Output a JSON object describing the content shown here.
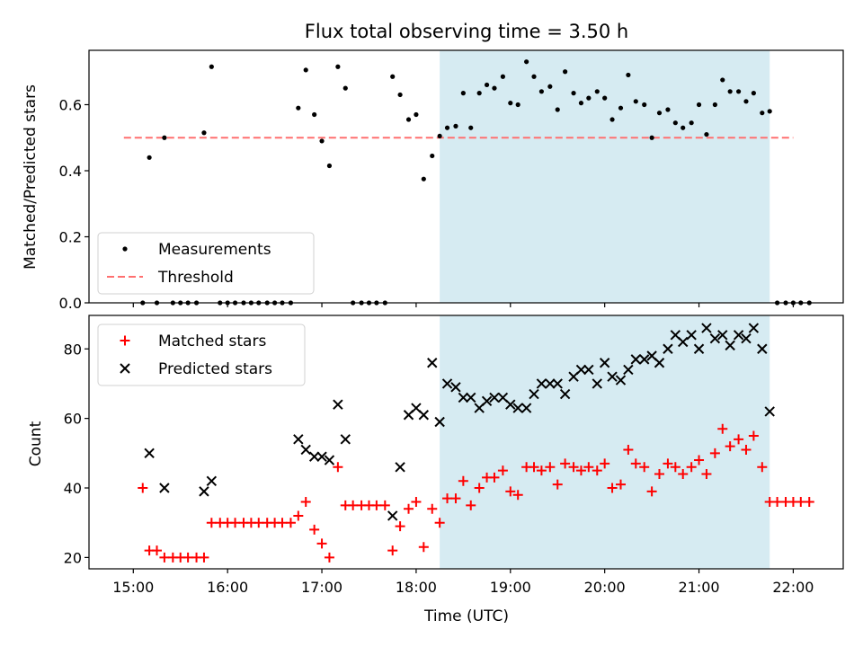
{
  "chart_data": [
    {
      "type": "scatter",
      "title": "Flux total observing time = 3.50 h",
      "xlabel": "",
      "ylabel": "Matched/Predicted stars",
      "xlim": [
        14.53,
        22.53
      ],
      "ylim": [
        0,
        0.7646
      ],
      "yticks": [
        0.0,
        0.2,
        0.4,
        0.6
      ],
      "ytick_labels": [
        "0.0",
        "0.2",
        "0.4",
        "0.6"
      ],
      "shaded_interval": [
        18.25,
        21.75
      ],
      "shade_color": "#add8e6",
      "legend_position": "lower-left",
      "threshold": {
        "name": "Threshold",
        "y": 0.5,
        "x_range": [
          14.9,
          22.0
        ],
        "color": "#ff7070",
        "style": "dashed"
      },
      "series": [
        {
          "name": "Measurements",
          "marker": "dot",
          "color": "#000000",
          "points": [
            [
              15.1,
              0.0
            ],
            [
              15.17,
              0.44
            ],
            [
              15.25,
              0.0
            ],
            [
              15.33,
              0.5
            ],
            [
              15.42,
              0.0
            ],
            [
              15.5,
              0.0
            ],
            [
              15.58,
              0.0
            ],
            [
              15.67,
              0.0
            ],
            [
              15.75,
              0.515
            ],
            [
              15.83,
              0.715
            ],
            [
              15.92,
              0.0
            ],
            [
              16.0,
              0.0
            ],
            [
              16.08,
              0.0
            ],
            [
              16.17,
              0.0
            ],
            [
              16.25,
              0.0
            ],
            [
              16.33,
              0.0
            ],
            [
              16.42,
              0.0
            ],
            [
              16.5,
              0.0
            ],
            [
              16.58,
              0.0
            ],
            [
              16.67,
              0.0
            ],
            [
              16.75,
              0.59
            ],
            [
              16.83,
              0.705
            ],
            [
              16.92,
              0.57
            ],
            [
              17.0,
              0.49
            ],
            [
              17.08,
              0.415
            ],
            [
              17.17,
              0.715
            ],
            [
              17.25,
              0.65
            ],
            [
              17.33,
              0.0
            ],
            [
              17.42,
              0.0
            ],
            [
              17.5,
              0.0
            ],
            [
              17.58,
              0.0
            ],
            [
              17.67,
              0.0
            ],
            [
              17.75,
              0.685
            ],
            [
              17.83,
              0.63
            ],
            [
              17.92,
              0.555
            ],
            [
              18.0,
              0.57
            ],
            [
              18.08,
              0.375
            ],
            [
              18.17,
              0.445
            ],
            [
              18.25,
              0.505
            ],
            [
              18.33,
              0.53
            ],
            [
              18.42,
              0.535
            ],
            [
              18.5,
              0.635
            ],
            [
              18.58,
              0.53
            ],
            [
              18.67,
              0.635
            ],
            [
              18.75,
              0.66
            ],
            [
              18.83,
              0.65
            ],
            [
              18.92,
              0.685
            ],
            [
              19.0,
              0.605
            ],
            [
              19.08,
              0.6
            ],
            [
              19.17,
              0.73
            ],
            [
              19.25,
              0.685
            ],
            [
              19.33,
              0.64
            ],
            [
              19.42,
              0.655
            ],
            [
              19.5,
              0.585
            ],
            [
              19.58,
              0.7
            ],
            [
              19.67,
              0.635
            ],
            [
              19.75,
              0.605
            ],
            [
              19.83,
              0.62
            ],
            [
              19.92,
              0.64
            ],
            [
              20.0,
              0.62
            ],
            [
              20.08,
              0.555
            ],
            [
              20.17,
              0.59
            ],
            [
              20.25,
              0.69
            ],
            [
              20.33,
              0.61
            ],
            [
              20.42,
              0.6
            ],
            [
              20.5,
              0.5
            ],
            [
              20.58,
              0.575
            ],
            [
              20.67,
              0.585
            ],
            [
              20.75,
              0.545
            ],
            [
              20.83,
              0.53
            ],
            [
              20.92,
              0.545
            ],
            [
              21.0,
              0.6
            ],
            [
              21.08,
              0.51
            ],
            [
              21.17,
              0.6
            ],
            [
              21.25,
              0.675
            ],
            [
              21.33,
              0.64
            ],
            [
              21.42,
              0.64
            ],
            [
              21.5,
              0.61
            ],
            [
              21.58,
              0.635
            ],
            [
              21.67,
              0.575
            ],
            [
              21.75,
              0.58
            ],
            [
              21.83,
              0.0
            ],
            [
              21.92,
              0.0
            ],
            [
              22.0,
              0.0
            ],
            [
              22.08,
              0.0
            ],
            [
              22.17,
              0.0
            ]
          ]
        }
      ]
    },
    {
      "type": "scatter",
      "title": "",
      "xlabel": "Time (UTC)",
      "ylabel": "Count",
      "xlim": [
        14.53,
        22.53
      ],
      "ylim": [
        16.74,
        89.63
      ],
      "xticks": [
        15,
        16,
        17,
        18,
        19,
        20,
        21,
        22
      ],
      "xtick_labels": [
        "15:00",
        "16:00",
        "17:00",
        "18:00",
        "19:00",
        "20:00",
        "21:00",
        "22:00"
      ],
      "yticks": [
        20,
        40,
        60,
        80
      ],
      "ytick_labels": [
        "20",
        "40",
        "60",
        "80"
      ],
      "shaded_interval": [
        18.25,
        21.75
      ],
      "shade_color": "#add8e6",
      "legend_position": "upper-left",
      "series": [
        {
          "name": "Matched stars",
          "marker": "plus",
          "color": "#ff0000",
          "points": [
            [
              15.1,
              40
            ],
            [
              15.17,
              22
            ],
            [
              15.25,
              22
            ],
            [
              15.33,
              20
            ],
            [
              15.42,
              20
            ],
            [
              15.5,
              20
            ],
            [
              15.58,
              20
            ],
            [
              15.67,
              20
            ],
            [
              15.75,
              20
            ],
            [
              15.83,
              30
            ],
            [
              15.92,
              30
            ],
            [
              16.0,
              30
            ],
            [
              16.08,
              30
            ],
            [
              16.17,
              30
            ],
            [
              16.25,
              30
            ],
            [
              16.33,
              30
            ],
            [
              16.42,
              30
            ],
            [
              16.5,
              30
            ],
            [
              16.58,
              30
            ],
            [
              16.67,
              30
            ],
            [
              16.75,
              32
            ],
            [
              16.83,
              36
            ],
            [
              16.92,
              28
            ],
            [
              17.0,
              24
            ],
            [
              17.08,
              20
            ],
            [
              17.17,
              46
            ],
            [
              17.25,
              35
            ],
            [
              17.33,
              35
            ],
            [
              17.42,
              35
            ],
            [
              17.5,
              35
            ],
            [
              17.58,
              35
            ],
            [
              17.67,
              35
            ],
            [
              17.75,
              22
            ],
            [
              17.83,
              29
            ],
            [
              17.92,
              34
            ],
            [
              18.0,
              36
            ],
            [
              18.08,
              23
            ],
            [
              18.17,
              34
            ],
            [
              18.25,
              30
            ],
            [
              18.33,
              37
            ],
            [
              18.42,
              37
            ],
            [
              18.5,
              42
            ],
            [
              18.58,
              35
            ],
            [
              18.67,
              40
            ],
            [
              18.75,
              43
            ],
            [
              18.83,
              43
            ],
            [
              18.92,
              45
            ],
            [
              19.0,
              39
            ],
            [
              19.08,
              38
            ],
            [
              19.17,
              46
            ],
            [
              19.25,
              46
            ],
            [
              19.33,
              45
            ],
            [
              19.42,
              46
            ],
            [
              19.5,
              41
            ],
            [
              19.58,
              47
            ],
            [
              19.67,
              46
            ],
            [
              19.75,
              45
            ],
            [
              19.83,
              46
            ],
            [
              19.92,
              45
            ],
            [
              20.0,
              47
            ],
            [
              20.08,
              40
            ],
            [
              20.17,
              41
            ],
            [
              20.25,
              51
            ],
            [
              20.33,
              47
            ],
            [
              20.42,
              46
            ],
            [
              20.5,
              39
            ],
            [
              20.58,
              44
            ],
            [
              20.67,
              47
            ],
            [
              20.75,
              46
            ],
            [
              20.83,
              44
            ],
            [
              20.92,
              46
            ],
            [
              21.0,
              48
            ],
            [
              21.08,
              44
            ],
            [
              21.17,
              50
            ],
            [
              21.25,
              57
            ],
            [
              21.33,
              52
            ],
            [
              21.42,
              54
            ],
            [
              21.5,
              51
            ],
            [
              21.58,
              55
            ],
            [
              21.67,
              46
            ],
            [
              21.75,
              36
            ],
            [
              21.83,
              36
            ],
            [
              21.92,
              36
            ],
            [
              22.0,
              36
            ],
            [
              22.08,
              36
            ],
            [
              22.17,
              36
            ]
          ]
        },
        {
          "name": "Predicted stars",
          "marker": "x",
          "color": "#000000",
          "points": [
            [
              15.17,
              50
            ],
            [
              15.33,
              40
            ],
            [
              15.75,
              39
            ],
            [
              15.83,
              42
            ],
            [
              16.75,
              54
            ],
            [
              16.83,
              51
            ],
            [
              16.92,
              49
            ],
            [
              17.0,
              49
            ],
            [
              17.08,
              48
            ],
            [
              17.17,
              64
            ],
            [
              17.25,
              54
            ],
            [
              17.75,
              32
            ],
            [
              17.83,
              46
            ],
            [
              17.92,
              61
            ],
            [
              18.0,
              63
            ],
            [
              18.08,
              61
            ],
            [
              18.17,
              76
            ],
            [
              18.25,
              59
            ],
            [
              18.33,
              70
            ],
            [
              18.42,
              69
            ],
            [
              18.5,
              66
            ],
            [
              18.58,
              66
            ],
            [
              18.67,
              63
            ],
            [
              18.75,
              65
            ],
            [
              18.83,
              66
            ],
            [
              18.92,
              66
            ],
            [
              19.0,
              64
            ],
            [
              19.08,
              63
            ],
            [
              19.17,
              63
            ],
            [
              19.25,
              67
            ],
            [
              19.33,
              70
            ],
            [
              19.42,
              70
            ],
            [
              19.5,
              70
            ],
            [
              19.58,
              67
            ],
            [
              19.67,
              72
            ],
            [
              19.75,
              74
            ],
            [
              19.83,
              74
            ],
            [
              19.92,
              70
            ],
            [
              20.0,
              76
            ],
            [
              20.08,
              72
            ],
            [
              20.17,
              71
            ],
            [
              20.25,
              74
            ],
            [
              20.33,
              77
            ],
            [
              20.42,
              77
            ],
            [
              20.5,
              78
            ],
            [
              20.58,
              76
            ],
            [
              20.67,
              80
            ],
            [
              20.75,
              84
            ],
            [
              20.83,
              82
            ],
            [
              20.92,
              84
            ],
            [
              21.0,
              80
            ],
            [
              21.08,
              86
            ],
            [
              21.17,
              83
            ],
            [
              21.25,
              84
            ],
            [
              21.33,
              81
            ],
            [
              21.42,
              84
            ],
            [
              21.5,
              83
            ],
            [
              21.58,
              86
            ],
            [
              21.67,
              80
            ],
            [
              21.75,
              62
            ]
          ]
        }
      ]
    }
  ]
}
